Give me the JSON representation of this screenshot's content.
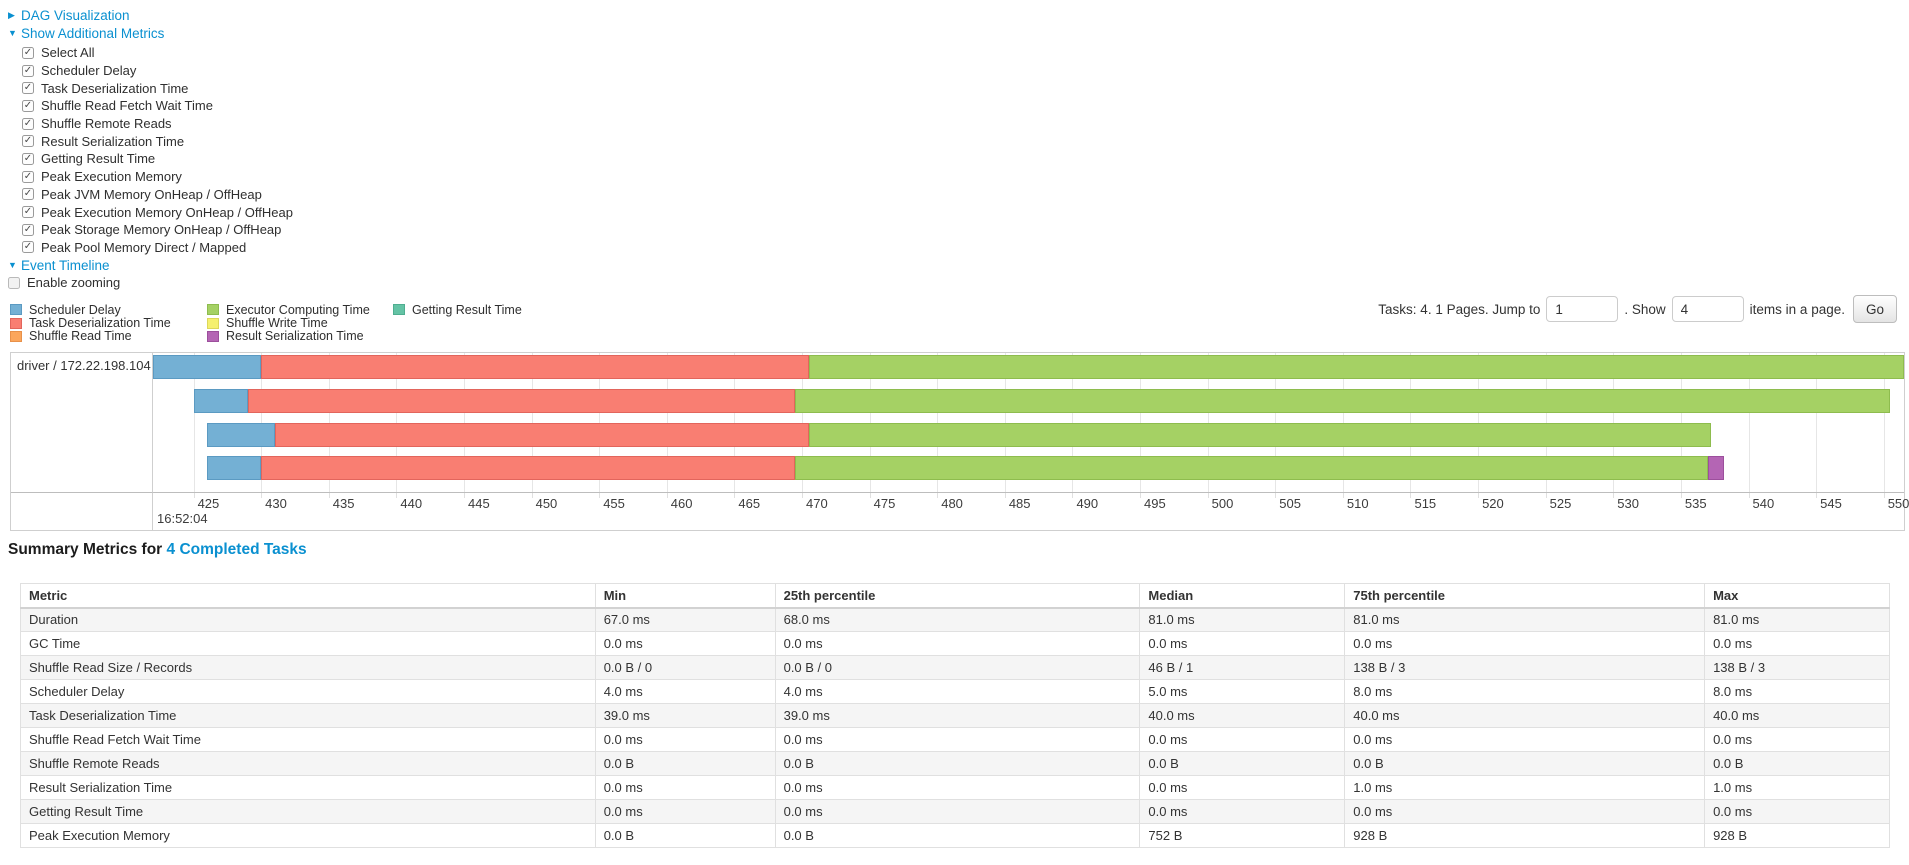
{
  "colors": {
    "link_blue": "#0a90d0",
    "scheduler_delay": {
      "fill": "#74B0D4",
      "border": "#5B9AC2"
    },
    "task_deserialization": {
      "fill": "#F97E72",
      "border": "#E2655C"
    },
    "shuffle_read": {
      "fill": "#FBA65C",
      "border": "#E8914A"
    },
    "executor_computing": {
      "fill": "#A5D164",
      "border": "#8EBC4E"
    },
    "shuffle_write": {
      "fill": "#F5F06F",
      "border": "#DCD75A"
    },
    "result_serialization": {
      "fill": "#B465B4",
      "border": "#9C4F9C"
    },
    "getting_result": {
      "fill": "#64C3A5",
      "border": "#4FAE90"
    }
  },
  "icons": {
    "collapsed_arrow": "▶",
    "expanded_arrow": "▼",
    "check": "✓"
  },
  "toggles": {
    "dag_label": "DAG Visualization",
    "metrics_label": "Show Additional Metrics",
    "timeline_label": "Event Timeline"
  },
  "additional_metrics": {
    "items": [
      {
        "label": "Select All",
        "checked": true
      },
      {
        "label": "Scheduler Delay",
        "checked": true
      },
      {
        "label": "Task Deserialization Time",
        "checked": true
      },
      {
        "label": "Shuffle Read Fetch Wait Time",
        "checked": true
      },
      {
        "label": "Shuffle Remote Reads",
        "checked": true
      },
      {
        "label": "Result Serialization Time",
        "checked": true
      },
      {
        "label": "Getting Result Time",
        "checked": true
      },
      {
        "label": "Peak Execution Memory",
        "checked": true
      },
      {
        "label": "Peak JVM Memory OnHeap / OffHeap",
        "checked": true
      },
      {
        "label": "Peak Execution Memory OnHeap / OffHeap",
        "checked": true
      },
      {
        "label": "Peak Storage Memory OnHeap / OffHeap",
        "checked": true
      },
      {
        "label": "Peak Pool Memory Direct / Mapped",
        "checked": true
      }
    ]
  },
  "event_timeline": {
    "enable_zooming_label": "Enable zooming",
    "checked": false
  },
  "pagination": {
    "text_before": "Tasks: 4. 1 Pages. Jump to",
    "jump_value": "1",
    "text_mid": ". Show",
    "show_value": "4",
    "text_after": "items in a page.",
    "go_label": "Go"
  },
  "chart_data": {
    "type": "timeline",
    "group_label": "driver / 172.22.198.104",
    "x_axis": {
      "range": [
        422,
        551.5
      ],
      "ticks": [
        425,
        430,
        435,
        440,
        445,
        450,
        455,
        460,
        465,
        470,
        475,
        480,
        485,
        490,
        495,
        500,
        505,
        510,
        515,
        520,
        525,
        530,
        535,
        540,
        545,
        550
      ],
      "major_label": "16:52:04"
    },
    "legend": [
      {
        "metric": "scheduler_delay",
        "label": "Scheduler Delay"
      },
      {
        "metric": "task_deserialization",
        "label": "Task Deserialization Time"
      },
      {
        "metric": "shuffle_read",
        "label": "Shuffle Read Time"
      },
      {
        "metric": "executor_computing",
        "label": "Executor Computing Time"
      },
      {
        "metric": "shuffle_write",
        "label": "Shuffle Write Time"
      },
      {
        "metric": "result_serialization",
        "label": "Result Serialization Time"
      },
      {
        "metric": "getting_result",
        "label": "Getting Result Time"
      }
    ],
    "tasks": [
      {
        "segments": [
          {
            "metric": "scheduler_delay",
            "start": 422,
            "end": 430
          },
          {
            "metric": "task_deserialization",
            "start": 430,
            "end": 470.5
          },
          {
            "metric": "executor_computing",
            "start": 470.5,
            "end": 551.5
          }
        ]
      },
      {
        "segments": [
          {
            "metric": "scheduler_delay",
            "start": 425,
            "end": 429
          },
          {
            "metric": "task_deserialization",
            "start": 429,
            "end": 469.5
          },
          {
            "metric": "executor_computing",
            "start": 469.5,
            "end": 550.5
          }
        ]
      },
      {
        "segments": [
          {
            "metric": "scheduler_delay",
            "start": 426,
            "end": 431
          },
          {
            "metric": "task_deserialization",
            "start": 431,
            "end": 470.5
          },
          {
            "metric": "executor_computing",
            "start": 470.5,
            "end": 537.2
          }
        ]
      },
      {
        "segments": [
          {
            "metric": "scheduler_delay",
            "start": 426,
            "end": 430
          },
          {
            "metric": "task_deserialization",
            "start": 430,
            "end": 469.5
          },
          {
            "metric": "executor_computing",
            "start": 469.5,
            "end": 537
          },
          {
            "metric": "result_serialization",
            "start": 537,
            "end": 538.2
          }
        ]
      }
    ]
  },
  "summary": {
    "title_prefix": "Summary Metrics for",
    "title_link": "4 Completed Tasks",
    "table": {
      "headers": [
        "Metric",
        "Min",
        "25th percentile",
        "Median",
        "75th percentile",
        "Max"
      ],
      "rows": [
        {
          "metric": "Duration",
          "values": [
            "67.0 ms",
            "68.0 ms",
            "81.0 ms",
            "81.0 ms",
            "81.0 ms"
          ]
        },
        {
          "metric": "GC Time",
          "values": [
            "0.0 ms",
            "0.0 ms",
            "0.0 ms",
            "0.0 ms",
            "0.0 ms"
          ]
        },
        {
          "metric": "Shuffle Read Size / Records",
          "values": [
            "0.0 B / 0",
            "0.0 B / 0",
            "46 B / 1",
            "138 B / 3",
            "138 B / 3"
          ]
        },
        {
          "metric": "Scheduler Delay",
          "values": [
            "4.0 ms",
            "4.0 ms",
            "5.0 ms",
            "8.0 ms",
            "8.0 ms"
          ]
        },
        {
          "metric": "Task Deserialization Time",
          "values": [
            "39.0 ms",
            "39.0 ms",
            "40.0 ms",
            "40.0 ms",
            "40.0 ms"
          ]
        },
        {
          "metric": "Shuffle Read Fetch Wait Time",
          "values": [
            "0.0 ms",
            "0.0 ms",
            "0.0 ms",
            "0.0 ms",
            "0.0 ms"
          ]
        },
        {
          "metric": "Shuffle Remote Reads",
          "values": [
            "0.0 B",
            "0.0 B",
            "0.0 B",
            "0.0 B",
            "0.0 B"
          ]
        },
        {
          "metric": "Result Serialization Time",
          "values": [
            "0.0 ms",
            "0.0 ms",
            "0.0 ms",
            "1.0 ms",
            "1.0 ms"
          ]
        },
        {
          "metric": "Getting Result Time",
          "values": [
            "0.0 ms",
            "0.0 ms",
            "0.0 ms",
            "0.0 ms",
            "0.0 ms"
          ]
        },
        {
          "metric": "Peak Execution Memory",
          "values": [
            "0.0 B",
            "0.0 B",
            "752 B",
            "928 B",
            "928 B"
          ]
        }
      ]
    }
  }
}
